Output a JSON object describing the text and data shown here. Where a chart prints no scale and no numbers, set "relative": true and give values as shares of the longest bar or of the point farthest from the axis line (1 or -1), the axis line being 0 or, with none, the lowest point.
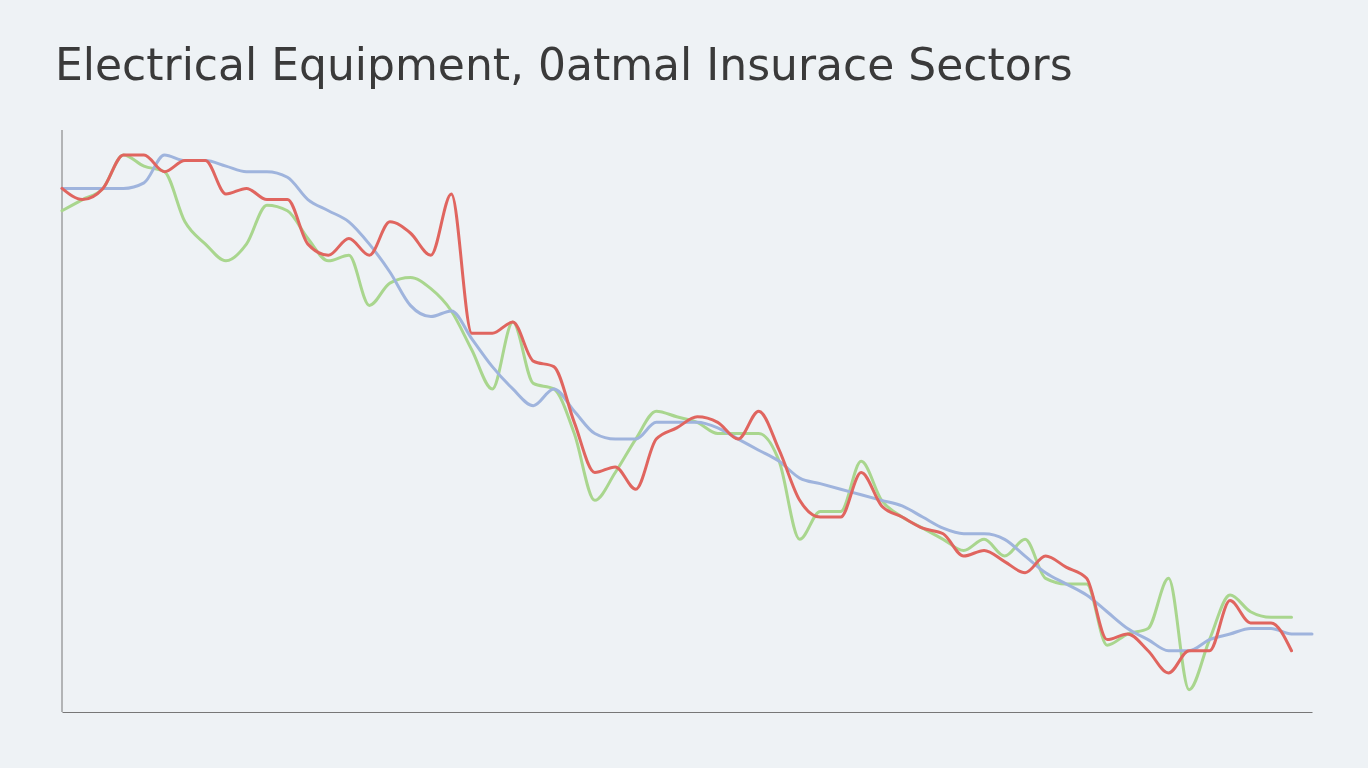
{
  "chart_data": {
    "type": "line",
    "title": "Electrical Equipment, 0atmal Insurace Sectors",
    "relative": true,
    "marker": "none",
    "line_style": "solid",
    "categories": [
      null,
      null,
      null,
      null,
      null,
      null,
      null,
      null,
      null,
      null,
      null,
      null,
      null,
      null,
      null,
      null,
      null,
      null,
      null,
      null,
      null,
      null,
      null,
      null,
      null,
      null,
      null,
      null,
      null,
      null,
      null,
      null,
      null,
      null,
      null,
      null,
      null,
      null,
      null,
      null,
      null,
      null,
      null,
      null,
      null,
      null,
      null,
      null,
      null,
      null,
      null,
      null,
      null,
      null,
      null,
      null,
      null,
      null,
      null,
      null,
      null,
      null
    ],
    "series": [
      {
        "color": "#a9d68e",
        "values": [
          0.9,
          0.92,
          0.94,
          1.0,
          0.98,
          0.97,
          0.88,
          0.84,
          0.81,
          0.84,
          0.91,
          0.9,
          0.85,
          0.81,
          0.82,
          0.73,
          0.77,
          0.78,
          0.76,
          0.72,
          0.65,
          0.58,
          0.7,
          0.59,
          0.58,
          0.5,
          0.38,
          0.43,
          0.49,
          0.54,
          0.53,
          0.52,
          0.5,
          0.5,
          0.5,
          0.45,
          0.31,
          0.36,
          0.36,
          0.45,
          0.38,
          0.35,
          0.33,
          0.31,
          0.29,
          0.31,
          0.28,
          0.31,
          0.24,
          0.23,
          0.23,
          0.12,
          0.14,
          0.15,
          0.24,
          0.04,
          0.13,
          0.21,
          0.18,
          0.17,
          0.17,
          null
        ]
      },
      {
        "color": "#9fb4dd",
        "values": [
          0.94,
          0.94,
          0.94,
          0.94,
          0.95,
          1.0,
          0.99,
          0.99,
          0.98,
          0.97,
          0.97,
          0.96,
          0.92,
          0.9,
          0.88,
          0.84,
          0.79,
          0.73,
          0.71,
          0.72,
          0.67,
          0.62,
          0.58,
          0.55,
          0.58,
          0.54,
          0.5,
          0.49,
          0.49,
          0.52,
          0.52,
          0.52,
          0.51,
          0.49,
          0.47,
          0.45,
          0.42,
          0.41,
          0.4,
          0.39,
          0.38,
          0.37,
          0.35,
          0.33,
          0.32,
          0.32,
          0.31,
          0.28,
          0.25,
          0.23,
          0.21,
          0.18,
          0.15,
          0.13,
          0.11,
          0.11,
          0.13,
          0.14,
          0.15,
          0.15,
          0.14,
          0.14
        ]
      },
      {
        "color": "#e0655f",
        "values": [
          0.94,
          0.92,
          0.94,
          1.0,
          1.0,
          0.97,
          0.99,
          0.99,
          0.93,
          0.94,
          0.92,
          0.92,
          0.84,
          0.82,
          0.85,
          0.82,
          0.88,
          0.86,
          0.82,
          0.93,
          0.68,
          0.68,
          0.7,
          0.63,
          0.62,
          0.52,
          0.43,
          0.44,
          0.4,
          0.49,
          0.51,
          0.53,
          0.52,
          0.49,
          0.54,
          0.47,
          0.38,
          0.35,
          0.35,
          0.43,
          0.37,
          0.35,
          0.33,
          0.32,
          0.28,
          0.29,
          0.27,
          0.25,
          0.28,
          0.26,
          0.24,
          0.13,
          0.14,
          0.11,
          0.07,
          0.11,
          0.11,
          0.2,
          0.16,
          0.16,
          0.11,
          null
        ]
      }
    ]
  }
}
